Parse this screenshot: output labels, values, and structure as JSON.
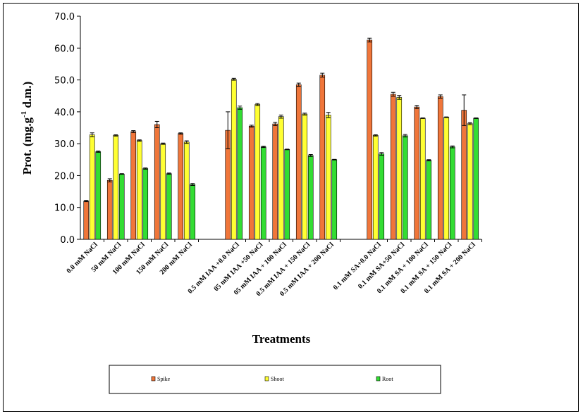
{
  "chart_data": {
    "type": "bar",
    "ylabel": "Prot. (mg.g",
    "ylabel_sup": "-1",
    "ylabel_tail": " d.m.)",
    "xlabel": "Treatments",
    "ylim": [
      0,
      70
    ],
    "yticks": [
      "0.0",
      "10.0",
      "20.0",
      "30.0",
      "40.0",
      "50.0",
      "60.0",
      "70.0"
    ],
    "grid": false,
    "legend_position": "bottom",
    "groups": [
      [
        "0.0 mM NaCl",
        "50 mM NaCl",
        "100 mM NaCl",
        "150 mM NaCl",
        "200 mM NaCl"
      ],
      [
        "0.5 mM IAA +0.0 NaCl",
        "05 mM IAA +50 NaCl",
        "05 mM IAA + 100 NaCl",
        "0.5 mM IAA + 150 NaCl",
        "0.5 mM IAA + 200 NaCl"
      ],
      [
        "0.1 mM SA+0.0 NaCl",
        "0.1 mM SA+50 NaCl",
        "0.1 mM SA + 100 NaCl",
        "0.1 mM SA + 150 NaCl",
        "0.1 mM SA + 200 NaCl"
      ]
    ],
    "series": [
      {
        "name": "Spike",
        "color": "#f0763a",
        "values": [
          12.0,
          18.5,
          33.8,
          36.0,
          33.2,
          34.2,
          35.5,
          36.2,
          48.5,
          51.5,
          62.5,
          45.5,
          41.5,
          44.8,
          40.5
        ],
        "errors": [
          0.2,
          0.5,
          0.3,
          1.0,
          0.2,
          5.8,
          0.3,
          0.5,
          0.5,
          0.6,
          0.6,
          0.6,
          0.5,
          0.5,
          4.8
        ]
      },
      {
        "name": "Shoot",
        "color": "#ffff33",
        "values": [
          32.8,
          32.6,
          31.0,
          30.0,
          30.5,
          50.2,
          42.3,
          38.5,
          39.3,
          39.0,
          32.6,
          44.5,
          38.0,
          38.3,
          36.3
        ],
        "errors": [
          0.6,
          0.2,
          0.2,
          0.2,
          0.4,
          0.3,
          0.3,
          0.5,
          0.3,
          0.8,
          0.2,
          0.6,
          0.1,
          0.1,
          0.3
        ]
      },
      {
        "name": "Root",
        "color": "#33dd33",
        "values": [
          27.5,
          20.5,
          22.2,
          20.6,
          17.2,
          41.3,
          29.0,
          28.2,
          26.3,
          25.0,
          26.8,
          32.5,
          24.8,
          29.0,
          38.0
        ],
        "errors": [
          0.2,
          0.1,
          0.2,
          0.2,
          0.3,
          0.5,
          0.2,
          0.1,
          0.3,
          0.1,
          0.4,
          0.4,
          0.2,
          0.3,
          0.1
        ]
      }
    ]
  }
}
